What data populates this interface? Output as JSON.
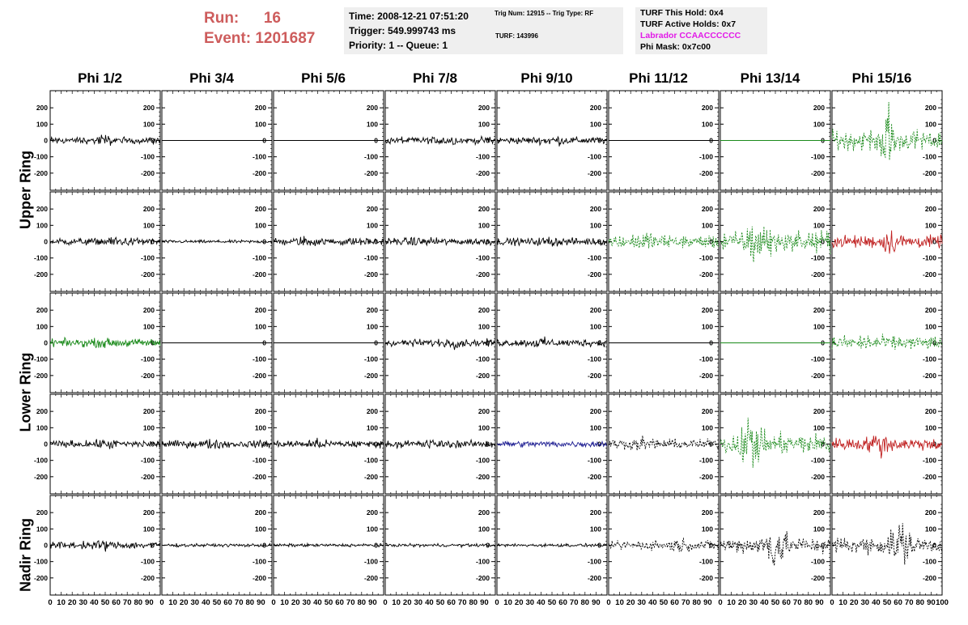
{
  "header": {
    "run_label": "Run:",
    "run_value": "16",
    "event_label": "Event:",
    "event_value": "1201687"
  },
  "time_box": {
    "time": "Time: 2008-12-21 07:51:20",
    "trigger": "Trigger: 549.999743 ms",
    "priority": "Priority: 1 -- Queue: 1"
  },
  "trig_box": {
    "trig": "Trig Num: 12915 -- Trig Type: RF",
    "turf": "TURF: 143996"
  },
  "turf_box": {
    "this_hold": "TURF This Hold: 0x4",
    "active_holds": "TURF Active Holds: 0x7",
    "labrador": "Labrador CCAACCCCCC",
    "phi_mask": "Phi Mask: 0x7c00"
  },
  "columns": [
    "Phi 1/2",
    "Phi 3/4",
    "Phi 5/6",
    "Phi 7/8",
    "Phi 9/10",
    "Phi 11/12",
    "Phi 13/14",
    "Phi 15/16"
  ],
  "ring_labels": [
    "Upper Ring",
    "Lower Ring",
    "Nadir Ring"
  ],
  "y_ticks": [
    "200",
    "100",
    "0",
    "-100",
    "-200"
  ],
  "x_ticks": [
    "0",
    "10",
    "20",
    "30",
    "40",
    "50",
    "60",
    "70",
    "80",
    "90",
    "100"
  ],
  "colors": {
    "black": "#000000",
    "green": "#1a8a1a",
    "red": "#c02020",
    "blue": "#1a1a90",
    "run_text": "#cd5c5c",
    "labrador_text": "#e21ae8",
    "box_bg": "#efefef"
  },
  "panels": [
    [
      "black-solid",
      "flat",
      "flat",
      "black-solid",
      "black-solid",
      "flat",
      "flat-green",
      "green-dashed-big"
    ],
    [
      "black-solid",
      "black-solid-small",
      "black-solid",
      "black-solid",
      "black-solid",
      "green-dashed",
      "green-dashed-big",
      "red-solid"
    ],
    [
      "green-solid",
      "flat",
      "flat",
      "black-solid",
      "black-solid",
      "flat",
      "flat-green",
      "green-dashed"
    ],
    [
      "black-solid",
      "black-solid",
      "black-solid",
      "black-solid",
      "blue-solid",
      "black-dashed",
      "green-dashed-big",
      "red-solid"
    ],
    [
      "black-solid",
      "black-solid-small",
      "black-solid-small",
      "black-solid-small",
      "black-solid-small",
      "black-dashed",
      "black-dashed-big",
      "black-dashed-big"
    ]
  ]
}
